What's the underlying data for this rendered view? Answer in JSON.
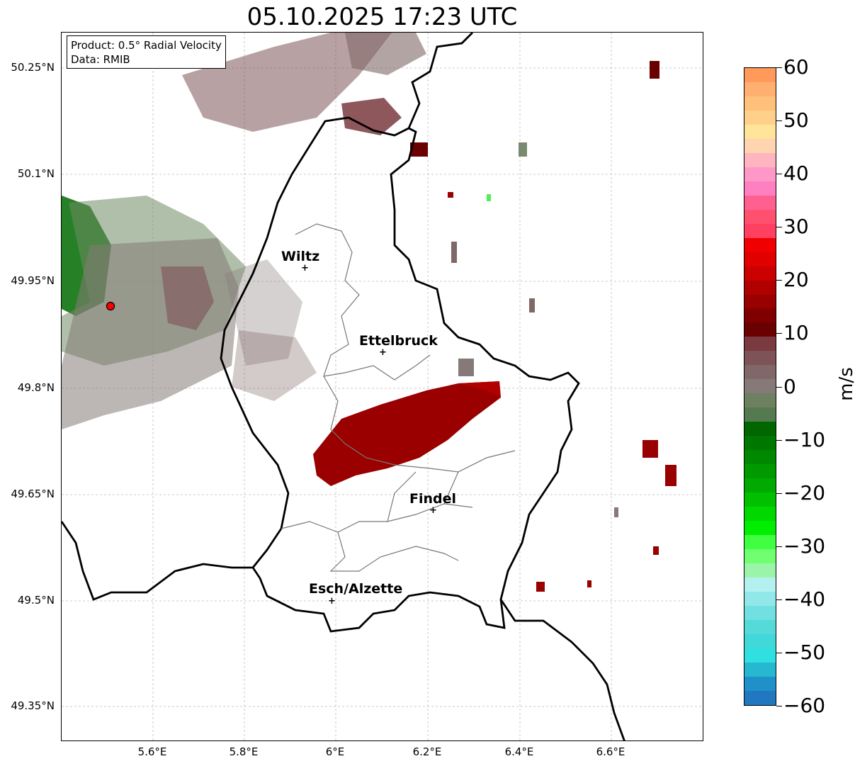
{
  "title": "05.10.2025 17:23 UTC",
  "info": {
    "product": "Product: 0.5° Radial Velocity",
    "data": "Data: RMIB"
  },
  "lat_labels": [
    "50.25°N",
    "50.1°N",
    "49.95°N",
    "49.8°N",
    "49.65°N",
    "49.5°N",
    "49.35°N"
  ],
  "lon_labels": [
    "5.6°E",
    "5.8°E",
    "6°E",
    "6.2°E",
    "6.4°E",
    "6.6°E"
  ],
  "cities": [
    {
      "name": "Wiltz"
    },
    {
      "name": "Ettelbruck"
    },
    {
      "name": "Findel"
    },
    {
      "name": "Esch/Alzette"
    }
  ],
  "colorbar": {
    "unit": "m/s",
    "min": -60,
    "max": 60,
    "tick_labels": [
      "60",
      "50",
      "40",
      "30",
      "20",
      "10",
      "0",
      "−10",
      "−20",
      "−30",
      "−40",
      "−50",
      "−60"
    ],
    "colors_top_to_bottom": [
      "#ff9a5a",
      "#ffb070",
      "#ffc07a",
      "#ffd08a",
      "#ffe49a",
      "#ffd4b0",
      "#ffb5c0",
      "#ff98c8",
      "#ff80c0",
      "#ff6090",
      "#ff5070",
      "#ff4060",
      "#f00000",
      "#e00000",
      "#cc0000",
      "#b00000",
      "#990000",
      "#800000",
      "#6a0000",
      "#7a3a3f",
      "#7d5358",
      "#806868",
      "#857a77",
      "#6d8060",
      "#557a50",
      "#006600",
      "#007700",
      "#008800",
      "#009900",
      "#00aa00",
      "#00c000",
      "#00d800",
      "#00ee00",
      "#40ff40",
      "#70ff70",
      "#9af5a8",
      "#b5f0f0",
      "#90e8e8",
      "#70e0e0",
      "#55dada",
      "#40d8d8",
      "#30e0e0",
      "#25b8d0",
      "#2090c8",
      "#1f78c0"
    ]
  },
  "radar_site_color": "#ff0000",
  "map_extent": {
    "lon": [
      5.4,
      6.8
    ],
    "lat": [
      49.3,
      50.3
    ]
  }
}
